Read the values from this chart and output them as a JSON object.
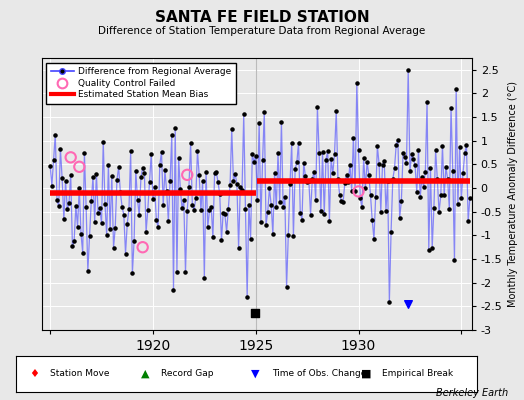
{
  "title": "SANTA FE FIELD STATION",
  "subtitle": "Difference of Station Temperature Data from Regional Average",
  "ylabel": "Monthly Temperature Anomaly Difference (°C)",
  "background_color": "#e8e8e8",
  "plot_bg_color": "#e8e8e8",
  "ylim": [
    -3.0,
    2.75
  ],
  "yticks": [
    -3,
    -2.5,
    -2,
    -1.5,
    -1,
    -0.5,
    0,
    0.5,
    1,
    1.5,
    2,
    2.5
  ],
  "xlim": [
    1914.6,
    1935.5
  ],
  "xtick_positions": [
    1915,
    1920,
    1925,
    1930,
    1935
  ],
  "xtick_labels": [
    "",
    "1920",
    "1925",
    "1930",
    ""
  ],
  "segment1_bias": -0.1,
  "segment2_bias": 0.15,
  "break_year": 1925.0,
  "empirical_break_x": 1924.95,
  "time_of_obs_change_x": 1932.4,
  "qc_failed_points": [
    [
      1916.0,
      0.65
    ],
    [
      1916.42,
      0.45
    ],
    [
      1919.5,
      -1.25
    ],
    [
      1921.67,
      0.28
    ],
    [
      1930.0,
      -0.07
    ]
  ],
  "line_color": "#4444ff",
  "line_alpha": 0.6,
  "marker_color": "black",
  "bias_color": "red",
  "bias_lw": 4.0,
  "qc_color": "#ff69b4",
  "vertical_line_color": "#bbbbbb",
  "grid_color": "white",
  "seed": 42
}
